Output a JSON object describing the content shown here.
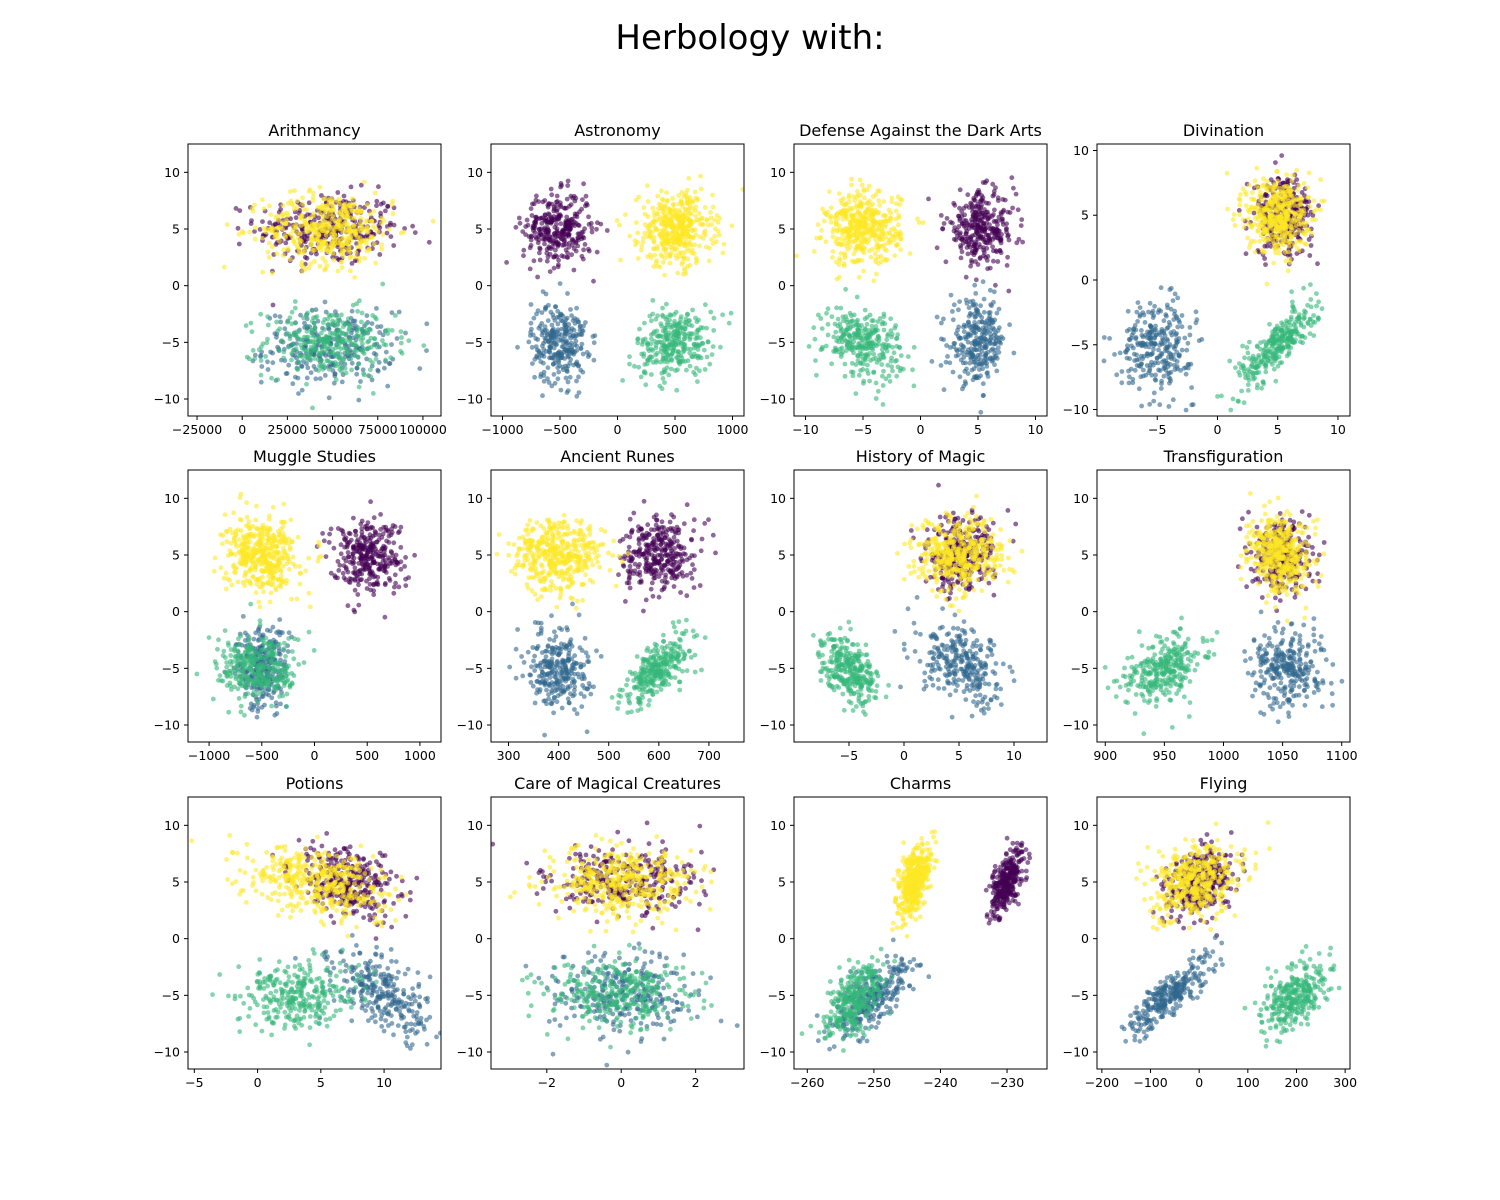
{
  "figure": {
    "suptitle": "Herbology with:"
  },
  "colors": {
    "cluster_a": "#440154",
    "cluster_b": "#31688e",
    "cluster_c": "#35b779",
    "cluster_d": "#fde725"
  },
  "chart_data": [
    {
      "type": "scatter",
      "title": "Arithmancy",
      "xlim": [
        -30000,
        110000
      ],
      "ylim": [
        -11.5,
        12.5
      ],
      "xticks": [
        {
          "v": -25000,
          "label": "−25000"
        },
        {
          "v": 0,
          "label": "0"
        },
        {
          "v": 25000,
          "label": "25000"
        },
        {
          "v": 50000,
          "label": "50000"
        },
        {
          "v": 75000,
          "label": "75000"
        },
        {
          "v": 100000,
          "label": "100000"
        }
      ],
      "yticks": [
        -10,
        -5,
        0,
        5,
        10
      ],
      "clusters": [
        {
          "group": "a",
          "mx": 48000,
          "my": 5,
          "sx": 20000,
          "sy": 1.6,
          "r": 0,
          "n": 320
        },
        {
          "group": "d",
          "mx": 48000,
          "my": 5,
          "sx": 18000,
          "sy": 1.6,
          "r": 0,
          "n": 420
        },
        {
          "group": "b",
          "mx": 48000,
          "my": -5.5,
          "sx": 18000,
          "sy": 1.6,
          "r": 0,
          "n": 280
        },
        {
          "group": "c",
          "mx": 48000,
          "my": -5,
          "sx": 18000,
          "sy": 1.5,
          "r": 0,
          "n": 300
        }
      ]
    },
    {
      "type": "scatter",
      "title": "Astronomy",
      "xlim": [
        -1100,
        1100
      ],
      "ylim": [
        -11.5,
        12.5
      ],
      "xticks": [
        {
          "v": -1000,
          "label": "−1000"
        },
        {
          "v": -500,
          "label": "−500"
        },
        {
          "v": 0,
          "label": "0"
        },
        {
          "v": 500,
          "label": "500"
        },
        {
          "v": 1000,
          "label": "1000"
        }
      ],
      "yticks": [
        -10,
        -5,
        0,
        5,
        10
      ],
      "clusters": [
        {
          "group": "a",
          "mx": -520,
          "my": 5,
          "sx": 150,
          "sy": 1.6,
          "r": 0,
          "n": 320
        },
        {
          "group": "d",
          "mx": 510,
          "my": 5,
          "sx": 160,
          "sy": 1.6,
          "r": 0,
          "n": 420
        },
        {
          "group": "b",
          "mx": -510,
          "my": -5,
          "sx": 120,
          "sy": 1.8,
          "r": 0,
          "n": 280
        },
        {
          "group": "c",
          "mx": 500,
          "my": -5,
          "sx": 170,
          "sy": 1.5,
          "r": 0.2,
          "n": 300
        }
      ]
    },
    {
      "type": "scatter",
      "title": "Defense Against the Dark Arts",
      "xlim": [
        -11,
        11
      ],
      "ylim": [
        -11.5,
        12.5
      ],
      "xticks": [
        {
          "v": -10,
          "label": "−10"
        },
        {
          "v": -5,
          "label": "−5"
        },
        {
          "v": 0,
          "label": "0"
        },
        {
          "v": 5,
          "label": "5"
        },
        {
          "v": 10,
          "label": "10"
        }
      ],
      "yticks": [
        -10,
        -5,
        0,
        5,
        10
      ],
      "clusters": [
        {
          "group": "a",
          "mx": 5.2,
          "my": 5,
          "sx": 1.5,
          "sy": 1.6,
          "r": 0,
          "n": 320
        },
        {
          "group": "d",
          "mx": -5,
          "my": 5,
          "sx": 1.6,
          "sy": 1.6,
          "r": 0,
          "n": 420
        },
        {
          "group": "b",
          "mx": 5,
          "my": -5,
          "sx": 1.2,
          "sy": 1.8,
          "r": 0,
          "n": 280
        },
        {
          "group": "c",
          "mx": -5,
          "my": -5,
          "sx": 1.7,
          "sy": 1.5,
          "r": -0.2,
          "n": 300
        }
      ]
    },
    {
      "type": "scatter",
      "title": "Divination",
      "xlim": [
        -10,
        11
      ],
      "ylim": [
        -10.5,
        10.5
      ],
      "xticks": [
        {
          "v": -5,
          "label": "−5"
        },
        {
          "v": 0,
          "label": "0"
        },
        {
          "v": 5,
          "label": "5"
        },
        {
          "v": 10,
          "label": "10"
        }
      ],
      "yticks": [
        -10,
        -5,
        0,
        5,
        10
      ],
      "clusters": [
        {
          "group": "a",
          "mx": 5.5,
          "my": 5,
          "sx": 1.2,
          "sy": 1.5,
          "r": 0,
          "n": 320
        },
        {
          "group": "d",
          "mx": 5,
          "my": 5,
          "sx": 1.3,
          "sy": 1.5,
          "r": 0,
          "n": 420
        },
        {
          "group": "b",
          "mx": -5,
          "my": -5,
          "sx": 1.5,
          "sy": 1.7,
          "r": 0,
          "n": 280
        },
        {
          "group": "c",
          "mx": 5,
          "my": -5,
          "sx": 1.6,
          "sy": 1.6,
          "r": 0.8,
          "n": 300
        }
      ]
    },
    {
      "type": "scatter",
      "title": "Muggle Studies",
      "xlim": [
        -1200,
        1200
      ],
      "ylim": [
        -11.5,
        12.5
      ],
      "xticks": [
        {
          "v": -1000,
          "label": "−1000"
        },
        {
          "v": -500,
          "label": "−500"
        },
        {
          "v": 0,
          "label": "0"
        },
        {
          "v": 500,
          "label": "500"
        },
        {
          "v": 1000,
          "label": "1000"
        }
      ],
      "yticks": [
        -10,
        -5,
        0,
        5,
        10
      ],
      "clusters": [
        {
          "group": "a",
          "mx": 500,
          "my": 5,
          "sx": 170,
          "sy": 1.6,
          "r": 0,
          "n": 320
        },
        {
          "group": "d",
          "mx": -500,
          "my": 5,
          "sx": 170,
          "sy": 1.6,
          "r": 0,
          "n": 420
        },
        {
          "group": "b",
          "mx": -500,
          "my": -5,
          "sx": 120,
          "sy": 1.8,
          "r": 0,
          "n": 280
        },
        {
          "group": "c",
          "mx": -520,
          "my": -5,
          "sx": 200,
          "sy": 1.5,
          "r": 0,
          "n": 300
        }
      ]
    },
    {
      "type": "scatter",
      "title": "Ancient Runes",
      "xlim": [
        265,
        770
      ],
      "ylim": [
        -11.5,
        12.5
      ],
      "xticks": [
        {
          "v": 300,
          "label": "300"
        },
        {
          "v": 400,
          "label": "400"
        },
        {
          "v": 500,
          "label": "500"
        },
        {
          "v": 600,
          "label": "600"
        },
        {
          "v": 700,
          "label": "700"
        }
      ],
      "yticks": [
        -10,
        -5,
        0,
        5,
        10
      ],
      "clusters": [
        {
          "group": "a",
          "mx": 600,
          "my": 5,
          "sx": 35,
          "sy": 1.6,
          "r": 0,
          "n": 320
        },
        {
          "group": "d",
          "mx": 400,
          "my": 5,
          "sx": 45,
          "sy": 1.6,
          "r": 0,
          "n": 420
        },
        {
          "group": "b",
          "mx": 400,
          "my": -5,
          "sx": 30,
          "sy": 1.8,
          "r": 0,
          "n": 280
        },
        {
          "group": "c",
          "mx": 600,
          "my": -5,
          "sx": 35,
          "sy": 1.6,
          "r": 0.7,
          "n": 300
        }
      ]
    },
    {
      "type": "scatter",
      "title": "History of Magic",
      "xlim": [
        -10,
        13
      ],
      "ylim": [
        -11.5,
        12.5
      ],
      "xticks": [
        {
          "v": -5,
          "label": "−5"
        },
        {
          "v": 0,
          "label": "0"
        },
        {
          "v": 5,
          "label": "5"
        },
        {
          "v": 10,
          "label": "10"
        }
      ],
      "yticks": [
        -10,
        -5,
        0,
        5,
        10
      ],
      "clusters": [
        {
          "group": "a",
          "mx": 5,
          "my": 5,
          "sx": 1.6,
          "sy": 1.6,
          "r": 0,
          "n": 320
        },
        {
          "group": "d",
          "mx": 5,
          "my": 5,
          "sx": 2,
          "sy": 1.6,
          "r": 0,
          "n": 420
        },
        {
          "group": "b",
          "mx": 5.5,
          "my": -5,
          "sx": 2,
          "sy": 1.7,
          "r": -0.3,
          "n": 280
        },
        {
          "group": "c",
          "mx": -5,
          "my": -5,
          "sx": 1.3,
          "sy": 1.5,
          "r": -0.5,
          "n": 300
        }
      ]
    },
    {
      "type": "scatter",
      "title": "Transfiguration",
      "xlim": [
        893,
        1107
      ],
      "ylim": [
        -11.5,
        12.5
      ],
      "xticks": [
        {
          "v": 900,
          "label": "900"
        },
        {
          "v": 950,
          "label": "950"
        },
        {
          "v": 1000,
          "label": "1000"
        },
        {
          "v": 1050,
          "label": "1050"
        },
        {
          "v": 1100,
          "label": "1100"
        }
      ],
      "yticks": [
        -10,
        -5,
        0,
        5,
        10
      ],
      "clusters": [
        {
          "group": "a",
          "mx": 1050,
          "my": 5,
          "sx": 12,
          "sy": 1.6,
          "r": 0,
          "n": 320
        },
        {
          "group": "d",
          "mx": 1048,
          "my": 5,
          "sx": 13,
          "sy": 1.7,
          "r": -0.2,
          "n": 420
        },
        {
          "group": "b",
          "mx": 1055,
          "my": -5,
          "sx": 15,
          "sy": 1.7,
          "r": 0,
          "n": 280
        },
        {
          "group": "c",
          "mx": 950,
          "my": -5,
          "sx": 16,
          "sy": 1.5,
          "r": 0.4,
          "n": 300
        }
      ]
    },
    {
      "type": "scatter",
      "title": "Potions",
      "xlim": [
        -5.5,
        14.5
      ],
      "ylim": [
        -11.5,
        12.5
      ],
      "xticks": [
        {
          "v": -5,
          "label": "−5"
        },
        {
          "v": 0,
          "label": "0"
        },
        {
          "v": 5,
          "label": "5"
        },
        {
          "v": 10,
          "label": "10"
        }
      ],
      "yticks": [
        -10,
        -5,
        0,
        5,
        10
      ],
      "clusters": [
        {
          "group": "a",
          "mx": 7,
          "my": 5,
          "sx": 2,
          "sy": 1.5,
          "r": -0.3,
          "n": 320
        },
        {
          "group": "d",
          "mx": 5,
          "my": 5,
          "sx": 2.8,
          "sy": 1.5,
          "r": -0.3,
          "n": 420
        },
        {
          "group": "b",
          "mx": 10,
          "my": -5,
          "sx": 2,
          "sy": 1.8,
          "r": -0.5,
          "n": 280
        },
        {
          "group": "c",
          "mx": 3,
          "my": -5,
          "sx": 2.3,
          "sy": 1.5,
          "r": 0,
          "n": 300
        }
      ]
    },
    {
      "type": "scatter",
      "title": "Care of Magical Creatures",
      "xlim": [
        -3.5,
        3.3
      ],
      "ylim": [
        -11.5,
        12.5
      ],
      "xticks": [
        {
          "v": -2,
          "label": "−2"
        },
        {
          "v": 0,
          "label": "0"
        },
        {
          "v": 2,
          "label": "2"
        }
      ],
      "yticks": [
        -10,
        -5,
        0,
        5,
        10
      ],
      "clusters": [
        {
          "group": "a",
          "mx": 0,
          "my": 5,
          "sx": 1,
          "sy": 1.6,
          "r": 0,
          "n": 320
        },
        {
          "group": "d",
          "mx": 0,
          "my": 5,
          "sx": 1,
          "sy": 1.6,
          "r": 0,
          "n": 420
        },
        {
          "group": "b",
          "mx": 0,
          "my": -5,
          "sx": 1,
          "sy": 1.8,
          "r": 0,
          "n": 280
        },
        {
          "group": "c",
          "mx": 0,
          "my": -5,
          "sx": 1,
          "sy": 1.5,
          "r": 0,
          "n": 300
        }
      ]
    },
    {
      "type": "scatter",
      "title": "Charms",
      "xlim": [
        -262,
        -224
      ],
      "ylim": [
        -11.5,
        12.5
      ],
      "xticks": [
        {
          "v": -260,
          "label": "−260"
        },
        {
          "v": -250,
          "label": "−250"
        },
        {
          "v": -240,
          "label": "−240"
        },
        {
          "v": -230,
          "label": "−230"
        }
      ],
      "yticks": [
        -10,
        -5,
        0,
        5,
        10
      ],
      "clusters": [
        {
          "group": "a",
          "mx": -230,
          "my": 5,
          "sx": 1.3,
          "sy": 1.6,
          "r": 0.7,
          "n": 320
        },
        {
          "group": "d",
          "mx": -244,
          "my": 5,
          "sx": 1.2,
          "sy": 1.6,
          "r": 0.5,
          "n": 420
        },
        {
          "group": "b",
          "mx": -250,
          "my": -5,
          "sx": 3,
          "sy": 1.8,
          "r": 0.7,
          "n": 280
        },
        {
          "group": "c",
          "mx": -253,
          "my": -5.5,
          "sx": 2.2,
          "sy": 1.6,
          "r": 0.6,
          "n": 300
        }
      ]
    },
    {
      "type": "scatter",
      "title": "Flying",
      "xlim": [
        -210,
        310
      ],
      "ylim": [
        -11.5,
        12.5
      ],
      "xticks": [
        {
          "v": -200,
          "label": "−200"
        },
        {
          "v": -100,
          "label": "−100"
        },
        {
          "v": 0,
          "label": "0"
        },
        {
          "v": 100,
          "label": "100"
        },
        {
          "v": 200,
          "label": "200"
        },
        {
          "v": 300,
          "label": "300"
        }
      ],
      "yticks": [
        -10,
        -5,
        0,
        5,
        10
      ],
      "clusters": [
        {
          "group": "a",
          "mx": 0,
          "my": 5,
          "sx": 35,
          "sy": 1.5,
          "r": 0.3,
          "n": 320
        },
        {
          "group": "d",
          "mx": -10,
          "my": 5,
          "sx": 45,
          "sy": 1.6,
          "r": 0.3,
          "n": 420
        },
        {
          "group": "b",
          "mx": -60,
          "my": -5,
          "sx": 45,
          "sy": 1.8,
          "r": 0.85,
          "n": 280
        },
        {
          "group": "c",
          "mx": 200,
          "my": -5,
          "sx": 35,
          "sy": 1.5,
          "r": 0.5,
          "n": 300
        }
      ]
    }
  ]
}
